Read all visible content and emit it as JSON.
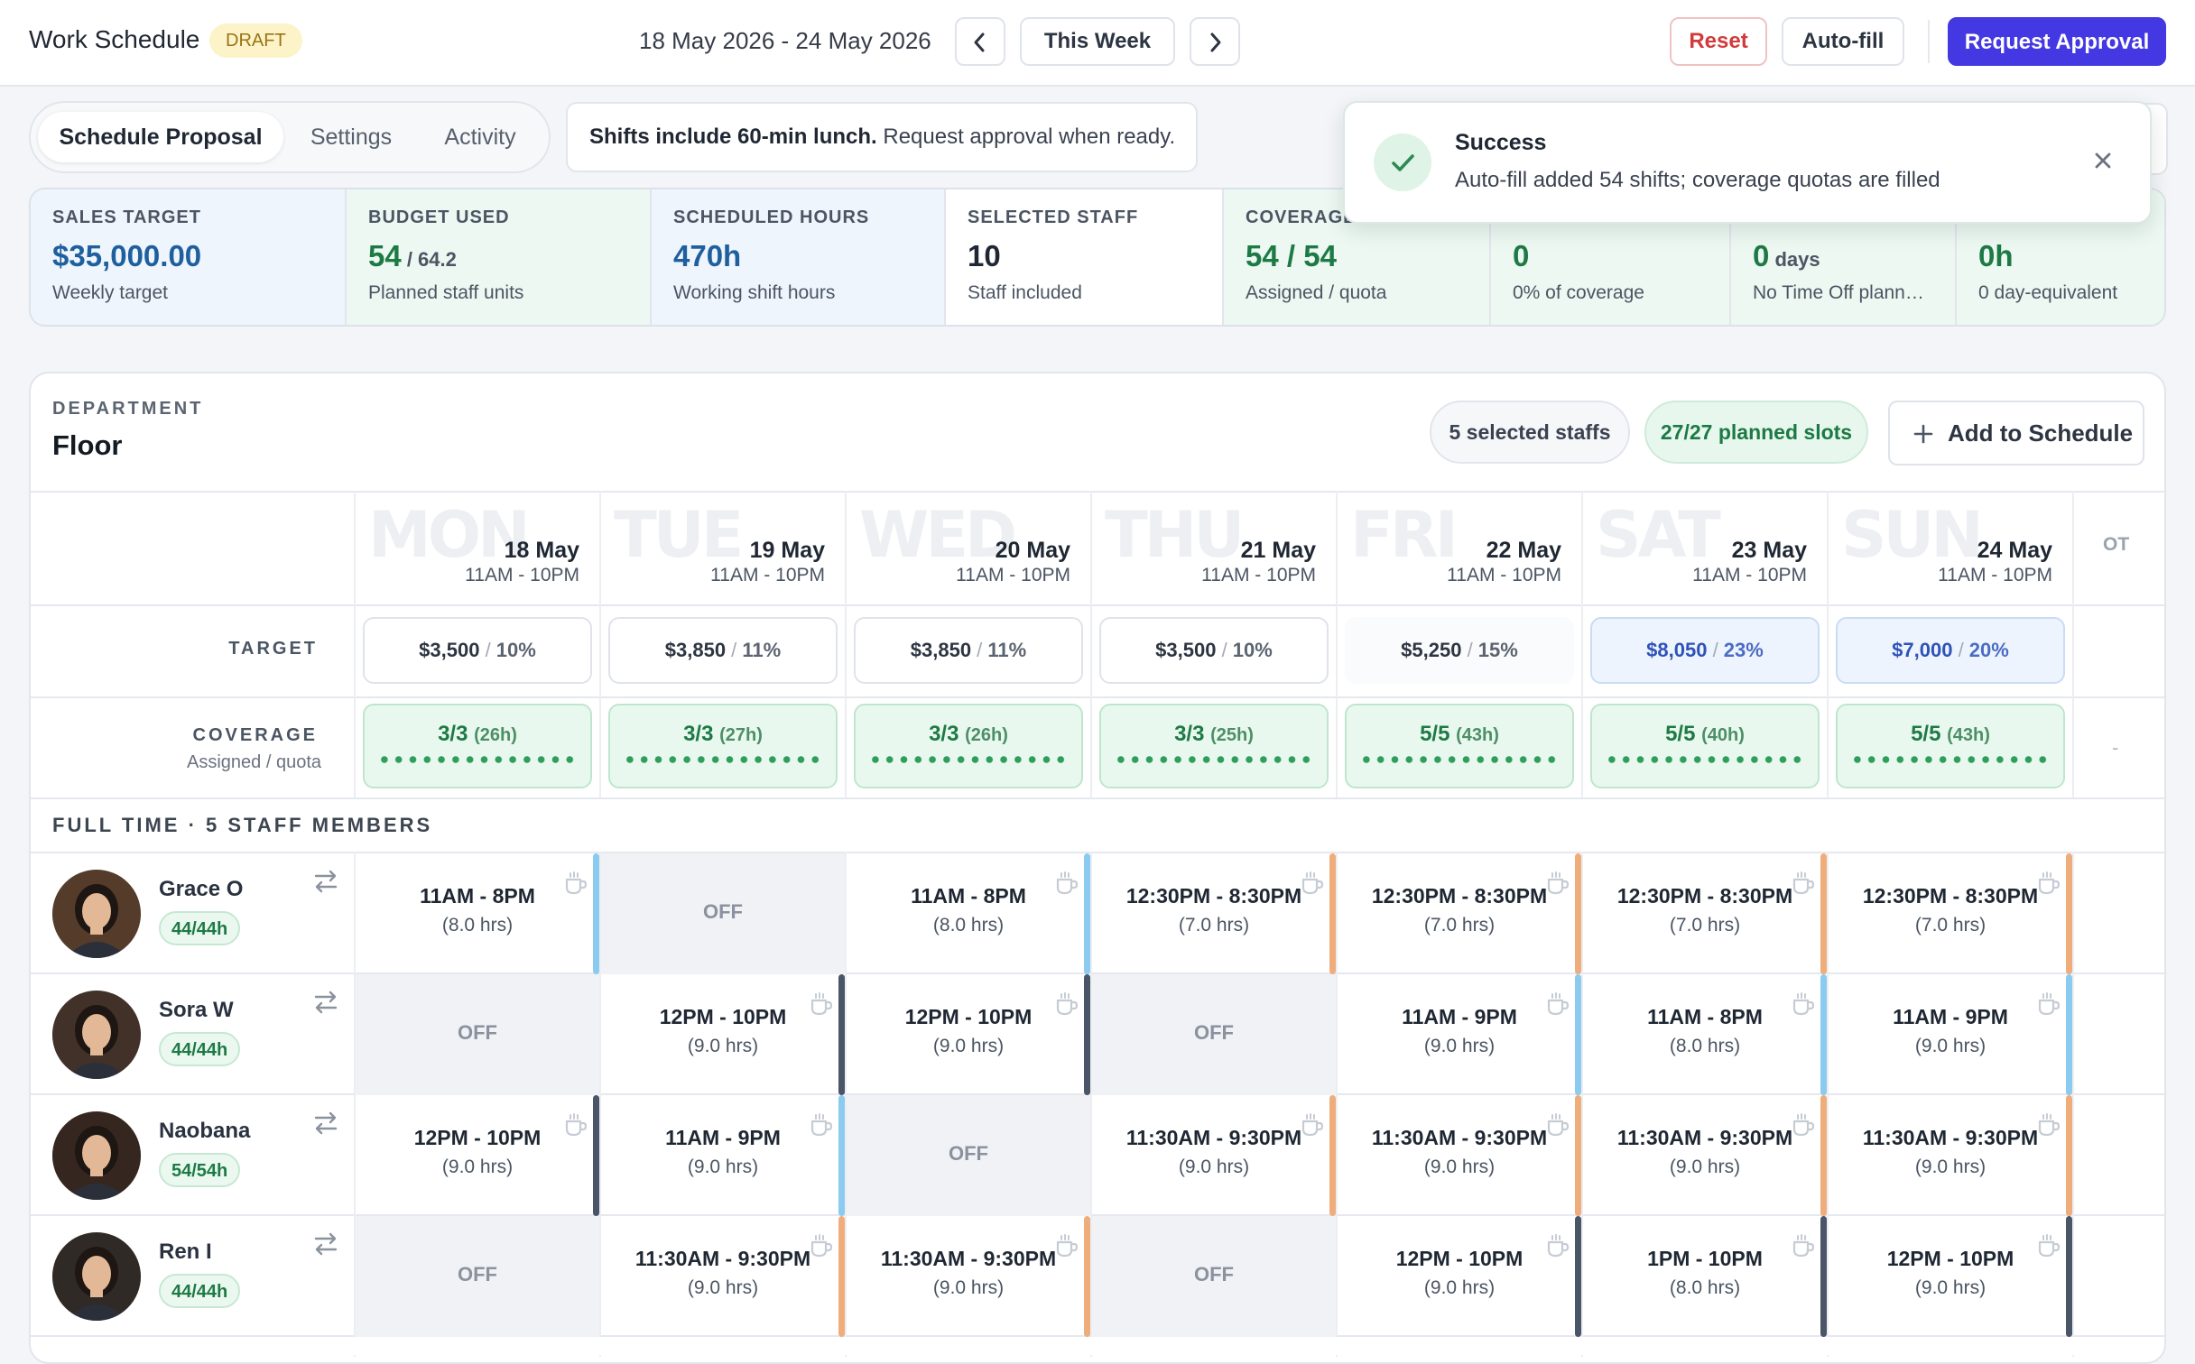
{
  "header": {
    "title": "Work Schedule",
    "status_badge": "DRAFT",
    "date_range": "18 May 2026 - 24 May 2026",
    "this_week_label": "This Week",
    "reset_label": "Reset",
    "autofill_label": "Auto-fill",
    "request_approval_label": "Request Approval"
  },
  "tabs": [
    "Schedule Proposal",
    "Settings",
    "Activity"
  ],
  "info_note": {
    "bold": "Shifts include 60-min lunch.",
    "text": " Request approval when ready."
  },
  "stats": [
    {
      "label": "SALES TARGET",
      "value": "$35,000.00",
      "value_suffix": "",
      "sub": "Weekly target",
      "tone": "blue",
      "color": "#1f5f9e"
    },
    {
      "label": "BUDGET USED",
      "value": "54",
      "value_suffix": " / 64.2",
      "sub": "Planned staff units",
      "tone": "green",
      "color": "#1d7a45"
    },
    {
      "label": "SCHEDULED HOURS",
      "value": "470h",
      "value_suffix": "",
      "sub": "Working shift hours",
      "tone": "blue",
      "color": "#1f5f9e"
    },
    {
      "label": "SELECTED STAFF",
      "value": "10",
      "value_suffix": "",
      "sub": "Staff included",
      "tone": "white",
      "color": "#1f2733"
    },
    {
      "label": "COVERAGE",
      "value": "54 / 54",
      "value_suffix": "",
      "sub": "Assigned / quota",
      "tone": "green",
      "color": "#1d7a45"
    },
    {
      "label": "",
      "value": "0",
      "value_suffix": "",
      "sub": "0% of coverage",
      "tone": "green",
      "color": "#1d7a45"
    },
    {
      "label": "",
      "value": "0",
      "value_suffix": " days",
      "sub": "No Time Off plann…",
      "tone": "green",
      "color": "#1d7a45"
    },
    {
      "label": "",
      "value": "0h",
      "value_suffix": "",
      "sub": "0 day-equivalent",
      "tone": "green",
      "color": "#1d7a45"
    }
  ],
  "toast": {
    "title": "Success",
    "message": "Auto-fill added 54 shifts; coverage quotas are filled"
  },
  "department": {
    "label": "DEPARTMENT",
    "name": "Floor",
    "selected_staffs": "5 selected staffs",
    "planned_slots": "27/27 planned slots",
    "add_label": "Add to Schedule"
  },
  "days": [
    {
      "abbr": "MON",
      "date": "18 May",
      "hours": "11AM - 10PM"
    },
    {
      "abbr": "TUE",
      "date": "19 May",
      "hours": "11AM - 10PM"
    },
    {
      "abbr": "WED",
      "date": "20 May",
      "hours": "11AM - 10PM"
    },
    {
      "abbr": "THU",
      "date": "21 May",
      "hours": "11AM - 10PM"
    },
    {
      "abbr": "FRI",
      "date": "22 May",
      "hours": "11AM - 10PM"
    },
    {
      "abbr": "SAT",
      "date": "23 May",
      "hours": "11AM - 10PM"
    },
    {
      "abbr": "SUN",
      "date": "24 May",
      "hours": "11AM - 10PM"
    }
  ],
  "ot_label": "OT",
  "target_row": {
    "label": "TARGET",
    "cells": [
      {
        "amount": "$3,500",
        "pct": "10%",
        "style": "normal"
      },
      {
        "amount": "$3,850",
        "pct": "11%",
        "style": "normal"
      },
      {
        "amount": "$3,850",
        "pct": "11%",
        "style": "normal"
      },
      {
        "amount": "$3,500",
        "pct": "10%",
        "style": "normal"
      },
      {
        "amount": "$5,250",
        "pct": "15%",
        "style": "flat"
      },
      {
        "amount": "$8,050",
        "pct": "23%",
        "style": "hi"
      },
      {
        "amount": "$7,000",
        "pct": "20%",
        "style": "hi"
      }
    ]
  },
  "coverage_row": {
    "label": "COVERAGE",
    "sublabel": "Assigned / quota",
    "cells": [
      {
        "count": "3/3",
        "hours": "(26h)"
      },
      {
        "count": "3/3",
        "hours": "(27h)"
      },
      {
        "count": "3/3",
        "hours": "(26h)"
      },
      {
        "count": "3/3",
        "hours": "(25h)"
      },
      {
        "count": "5/5",
        "hours": "(43h)"
      },
      {
        "count": "5/5",
        "hours": "(40h)"
      },
      {
        "count": "5/5",
        "hours": "(43h)"
      }
    ],
    "ot": "-"
  },
  "full_time_header": "FULL TIME · 5 STAFF MEMBERS",
  "off_label": "OFF",
  "staff": [
    {
      "name": "Grace O",
      "hours": "44/44h",
      "avatar_color": "#6b4a34",
      "shifts": [
        {
          "time": "11AM - 8PM",
          "dur": "(8.0 hrs)",
          "bar": "blue"
        },
        null,
        {
          "time": "11AM - 8PM",
          "dur": "(8.0 hrs)",
          "bar": "blue"
        },
        {
          "time": "12:30PM - 8:30PM",
          "dur": "(7.0 hrs)",
          "bar": "orange"
        },
        {
          "time": "12:30PM - 8:30PM",
          "dur": "(7.0 hrs)",
          "bar": "orange"
        },
        {
          "time": "12:30PM - 8:30PM",
          "dur": "(7.0 hrs)",
          "bar": "orange"
        },
        {
          "time": "12:30PM - 8:30PM",
          "dur": "(7.0 hrs)",
          "bar": "orange"
        }
      ]
    },
    {
      "name": "Sora W",
      "hours": "44/44h",
      "avatar_color": "#4e3b30",
      "shifts": [
        null,
        {
          "time": "12PM - 10PM",
          "dur": "(9.0 hrs)",
          "bar": "navy"
        },
        {
          "time": "12PM - 10PM",
          "dur": "(9.0 hrs)",
          "bar": "navy"
        },
        null,
        {
          "time": "11AM - 9PM",
          "dur": "(9.0 hrs)",
          "bar": "blue"
        },
        {
          "time": "11AM - 8PM",
          "dur": "(8.0 hrs)",
          "bar": "blue"
        },
        {
          "time": "11AM - 9PM",
          "dur": "(9.0 hrs)",
          "bar": "blue"
        }
      ]
    },
    {
      "name": "Naobana",
      "hours": "54/54h",
      "avatar_color": "#3d2a24",
      "shifts": [
        {
          "time": "12PM - 10PM",
          "dur": "(9.0 hrs)",
          "bar": "navy"
        },
        {
          "time": "11AM - 9PM",
          "dur": "(9.0 hrs)",
          "bar": "blue"
        },
        null,
        {
          "time": "11:30AM - 9:30PM",
          "dur": "(9.0 hrs)",
          "bar": "orange"
        },
        {
          "time": "11:30AM - 9:30PM",
          "dur": "(9.0 hrs)",
          "bar": "orange"
        },
        {
          "time": "11:30AM - 9:30PM",
          "dur": "(9.0 hrs)",
          "bar": "orange"
        },
        {
          "time": "11:30AM - 9:30PM",
          "dur": "(9.0 hrs)",
          "bar": "orange"
        }
      ]
    },
    {
      "name": "Ren I",
      "hours": "44/44h",
      "avatar_color": "#33302d",
      "shifts": [
        null,
        {
          "time": "11:30AM - 9:30PM",
          "dur": "(9.0 hrs)",
          "bar": "orange"
        },
        {
          "time": "11:30AM - 9:30PM",
          "dur": "(9.0 hrs)",
          "bar": "orange"
        },
        null,
        {
          "time": "12PM - 10PM",
          "dur": "(9.0 hrs)",
          "bar": "navy"
        },
        {
          "time": "1PM - 10PM",
          "dur": "(8.0 hrs)",
          "bar": "navy"
        },
        {
          "time": "12PM - 10PM",
          "dur": "(9.0 hrs)",
          "bar": "navy"
        }
      ]
    }
  ]
}
